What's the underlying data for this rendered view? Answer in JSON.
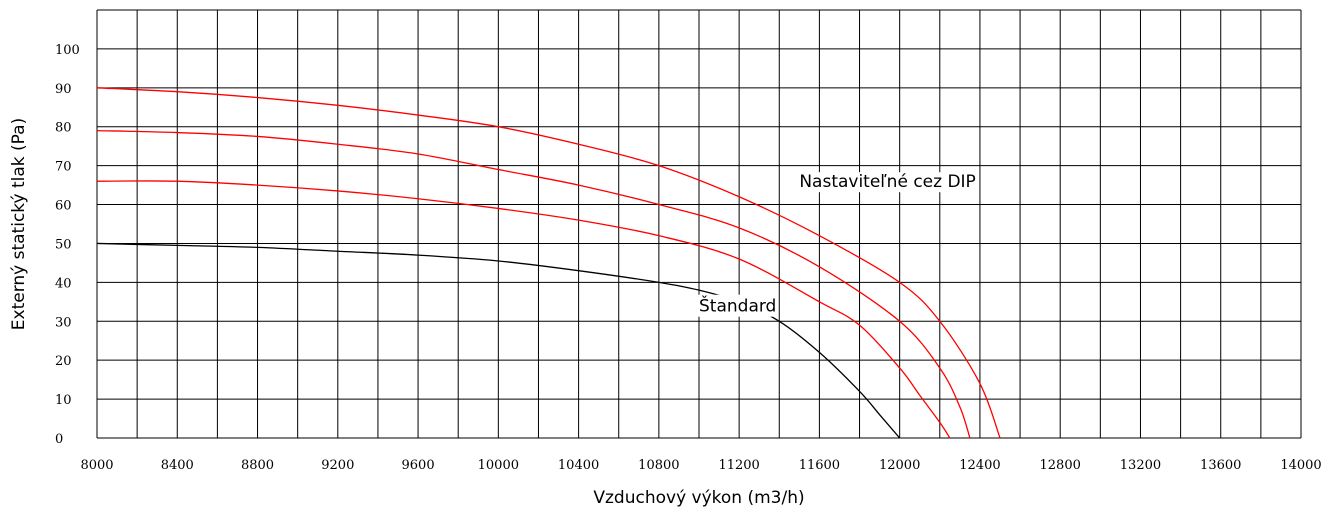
{
  "chart_data": {
    "type": "line",
    "xlabel": "Vzduchový výkon (m3/h)",
    "ylabel": "Externý statický tlak (Pa)",
    "xlim": [
      8000,
      14000
    ],
    "ylim": [
      0,
      110
    ],
    "x_ticks": [
      8000,
      8400,
      8800,
      9200,
      9600,
      10000,
      10400,
      10800,
      11200,
      11600,
      12000,
      12400,
      12800,
      13200,
      13600,
      14000
    ],
    "y_ticks": [
      0,
      10,
      20,
      30,
      40,
      50,
      60,
      70,
      80,
      90,
      100
    ],
    "grid": true,
    "colors": {
      "standard": "#000000",
      "adjustable": "#ff0000"
    },
    "series": [
      {
        "color": "#000000",
        "x": [
          8000,
          8400,
          8800,
          9200,
          9600,
          10000,
          10400,
          10800,
          11000,
          11200,
          11400,
          11600,
          11800,
          11900,
          12000
        ],
        "y": [
          50,
          49.5,
          49,
          48,
          47,
          45.5,
          43,
          40,
          38,
          35,
          30,
          22,
          12,
          6,
          0
        ]
      },
      {
        "color": "#ff0000",
        "x": [
          8000,
          8400,
          8800,
          9200,
          9600,
          10000,
          10400,
          10800,
          11200,
          11600,
          11800,
          12000,
          12100,
          12200,
          12250
        ],
        "y": [
          66,
          66,
          65,
          63.5,
          61.5,
          59,
          56,
          52,
          46,
          35,
          29,
          18,
          11,
          4,
          0
        ]
      },
      {
        "color": "#ff0000",
        "x": [
          8000,
          8400,
          8800,
          9200,
          9600,
          10000,
          10400,
          10800,
          11200,
          11600,
          12000,
          12200,
          12300,
          12350
        ],
        "y": [
          79,
          78.5,
          77.5,
          75.5,
          73,
          69,
          65,
          60,
          54,
          44,
          30,
          18,
          8,
          0
        ]
      },
      {
        "color": "#ff0000",
        "x": [
          8000,
          8400,
          8800,
          9200,
          9600,
          10000,
          10400,
          10800,
          11200,
          11600,
          12000,
          12200,
          12400,
          12500
        ],
        "y": [
          90,
          89,
          87.5,
          85.5,
          83,
          80,
          75.5,
          70,
          62,
          52,
          40,
          30,
          14,
          0
        ]
      }
    ],
    "annotations": [
      {
        "text": "Nastaviteľné cez DIP",
        "x": 11500,
        "y": 66
      },
      {
        "text": "Štandard",
        "x": 11000,
        "y": 34
      }
    ]
  }
}
